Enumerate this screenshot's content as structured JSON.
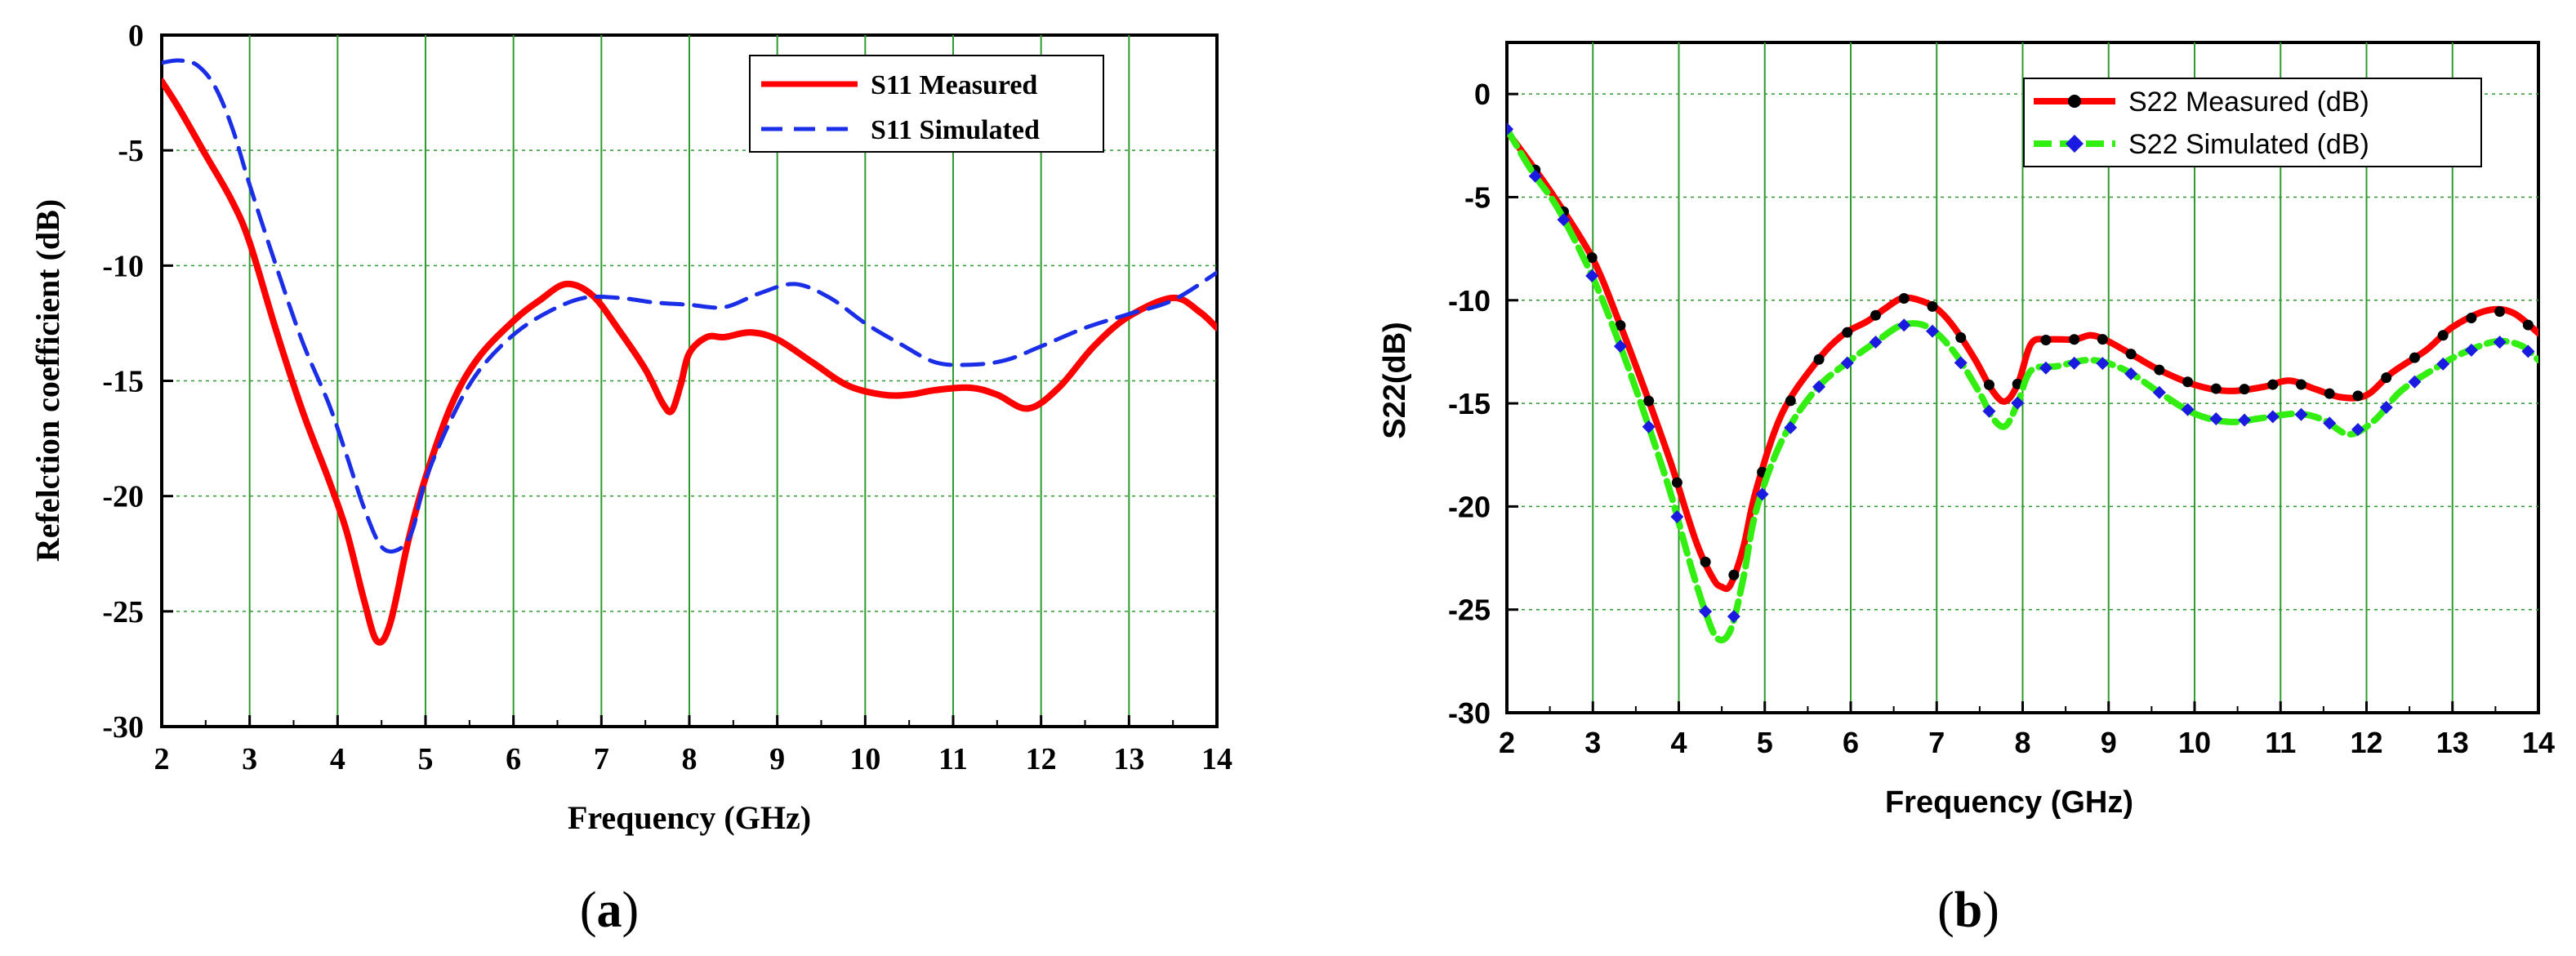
{
  "chart_data": [
    {
      "id": "a",
      "type": "line",
      "caption_open": "(",
      "caption_letter": "a",
      "caption_close": ")",
      "xlabel": "Frequency (GHz)",
      "ylabel": "Refelction coefficient (dB)",
      "xlim": [
        2,
        14
      ],
      "ylim": [
        -30,
        0
      ],
      "xticks": [
        2,
        3,
        4,
        5,
        6,
        7,
        8,
        9,
        10,
        11,
        12,
        13,
        14
      ],
      "yticks": [
        0,
        -5,
        -10,
        -15,
        -20,
        -25,
        -30
      ],
      "grid": "vertical solid green, horizontal dotted green",
      "legend_position": "top-right",
      "series": [
        {
          "name": "S11 Measured",
          "color": "#ff0000",
          "style": "solid",
          "x": [
            2.0,
            2.2,
            2.5,
            2.8,
            3.0,
            3.3,
            3.6,
            3.9,
            4.1,
            4.3,
            4.45,
            4.6,
            4.8,
            5.0,
            5.3,
            5.6,
            6.0,
            6.3,
            6.6,
            6.9,
            7.2,
            7.5,
            7.7,
            7.8,
            7.9,
            8.0,
            8.2,
            8.4,
            8.7,
            9.0,
            9.4,
            9.8,
            10.2,
            10.5,
            10.8,
            11.2,
            11.5,
            11.85,
            12.2,
            12.6,
            13.0,
            13.5,
            13.8,
            14.0
          ],
          "y": [
            -2.0,
            -3.2,
            -5.2,
            -7.2,
            -9.0,
            -12.8,
            -16.3,
            -19.3,
            -21.5,
            -24.5,
            -26.3,
            -25.5,
            -22.0,
            -19.2,
            -16.0,
            -14.0,
            -12.4,
            -11.5,
            -10.8,
            -11.3,
            -12.8,
            -14.5,
            -16.0,
            -16.3,
            -15.2,
            -13.8,
            -13.1,
            -13.1,
            -12.9,
            -13.2,
            -14.2,
            -15.2,
            -15.6,
            -15.6,
            -15.4,
            -15.3,
            -15.6,
            -16.2,
            -15.3,
            -13.5,
            -12.2,
            -11.4,
            -12.0,
            -12.7
          ]
        },
        {
          "name": "S11 Simulated",
          "color": "#1a2ee8",
          "style": "dashed",
          "x": [
            2.0,
            2.2,
            2.4,
            2.6,
            2.8,
            3.0,
            3.3,
            3.6,
            3.9,
            4.1,
            4.3,
            4.5,
            4.7,
            4.85,
            5.0,
            5.3,
            5.6,
            6.0,
            6.4,
            6.8,
            7.2,
            7.6,
            8.0,
            8.4,
            8.8,
            9.2,
            9.6,
            10.0,
            10.4,
            10.8,
            11.2,
            11.6,
            12.0,
            12.5,
            13.0,
            13.5,
            14.0
          ],
          "y": [
            -1.2,
            -1.1,
            -1.3,
            -2.2,
            -4.0,
            -6.5,
            -10.0,
            -13.3,
            -16.0,
            -18.2,
            -20.5,
            -22.2,
            -22.3,
            -21.5,
            -19.3,
            -16.6,
            -14.6,
            -13.0,
            -12.0,
            -11.4,
            -11.4,
            -11.6,
            -11.7,
            -11.8,
            -11.2,
            -10.8,
            -11.4,
            -12.5,
            -13.4,
            -14.2,
            -14.3,
            -14.1,
            -13.5,
            -12.7,
            -12.1,
            -11.5,
            -10.3
          ]
        }
      ]
    },
    {
      "id": "b",
      "type": "line",
      "caption_open": "(",
      "caption_letter": "b",
      "caption_close": ")",
      "xlabel": "Frequency (GHz)",
      "ylabel": "S22(dB)",
      "xlim": [
        2,
        14
      ],
      "ylim": [
        -30,
        2.5
      ],
      "xticks": [
        2,
        3,
        4,
        5,
        6,
        7,
        8,
        9,
        10,
        11,
        12,
        13,
        14
      ],
      "yticks": [
        0,
        -5,
        -10,
        -15,
        -20,
        -25,
        -30
      ],
      "grid": "vertical solid green, horizontal dotted green",
      "legend_position": "top-right",
      "series": [
        {
          "name": "S22 Measured (dB)",
          "color": "#ff0000",
          "marker": "circle",
          "marker_color": "#000000",
          "style": "solid",
          "x": [
            2.0,
            2.3,
            2.6,
            3.0,
            3.3,
            3.6,
            3.9,
            4.2,
            4.4,
            4.5,
            4.6,
            4.75,
            4.9,
            5.2,
            5.6,
            5.9,
            6.2,
            6.4,
            6.6,
            6.8,
            7.0,
            7.2,
            7.45,
            7.65,
            7.8,
            7.95,
            8.1,
            8.3,
            8.6,
            8.8,
            9.0,
            9.3,
            9.6,
            10.0,
            10.4,
            10.8,
            11.1,
            11.4,
            11.7,
            12.0,
            12.3,
            12.7,
            13.0,
            13.4,
            13.7,
            14.0
          ],
          "y": [
            -1.8,
            -3.5,
            -5.3,
            -8.0,
            -11.0,
            -14.3,
            -17.8,
            -21.7,
            -23.5,
            -23.9,
            -23.8,
            -22.0,
            -19.2,
            -15.5,
            -13.0,
            -11.7,
            -11.0,
            -10.4,
            -9.9,
            -10.0,
            -10.4,
            -11.3,
            -12.9,
            -14.4,
            -14.9,
            -14.0,
            -12.1,
            -11.9,
            -11.9,
            -11.7,
            -12.0,
            -12.7,
            -13.4,
            -14.1,
            -14.4,
            -14.2,
            -13.9,
            -14.3,
            -14.7,
            -14.6,
            -13.5,
            -12.4,
            -11.3,
            -10.5,
            -10.6,
            -11.6
          ]
        },
        {
          "name": "S22 Simulated (dB)",
          "color": "#33ee11",
          "marker": "diamond",
          "marker_color": "#1a1ae0",
          "style": "dashed",
          "x": [
            2.0,
            2.3,
            2.6,
            3.0,
            3.3,
            3.6,
            3.9,
            4.1,
            4.3,
            4.45,
            4.6,
            4.75,
            4.9,
            5.2,
            5.6,
            6.0,
            6.3,
            6.6,
            6.9,
            7.2,
            7.5,
            7.65,
            7.8,
            7.95,
            8.1,
            8.4,
            8.8,
            9.2,
            9.6,
            10.0,
            10.4,
            10.8,
            11.2,
            11.5,
            11.8,
            12.1,
            12.4,
            12.8,
            13.1,
            13.5,
            13.8,
            14.0
          ],
          "y": [
            -1.7,
            -3.8,
            -5.6,
            -8.9,
            -12.0,
            -15.5,
            -19.3,
            -22.3,
            -25.0,
            -26.4,
            -26.0,
            -23.5,
            -20.2,
            -16.8,
            -14.3,
            -12.9,
            -12.0,
            -11.2,
            -11.3,
            -12.5,
            -14.5,
            -15.7,
            -16.1,
            -14.9,
            -13.4,
            -13.2,
            -12.9,
            -13.4,
            -14.5,
            -15.5,
            -15.9,
            -15.7,
            -15.5,
            -15.8,
            -16.5,
            -15.8,
            -14.4,
            -13.3,
            -12.6,
            -12.0,
            -12.2,
            -12.9
          ]
        }
      ]
    }
  ]
}
